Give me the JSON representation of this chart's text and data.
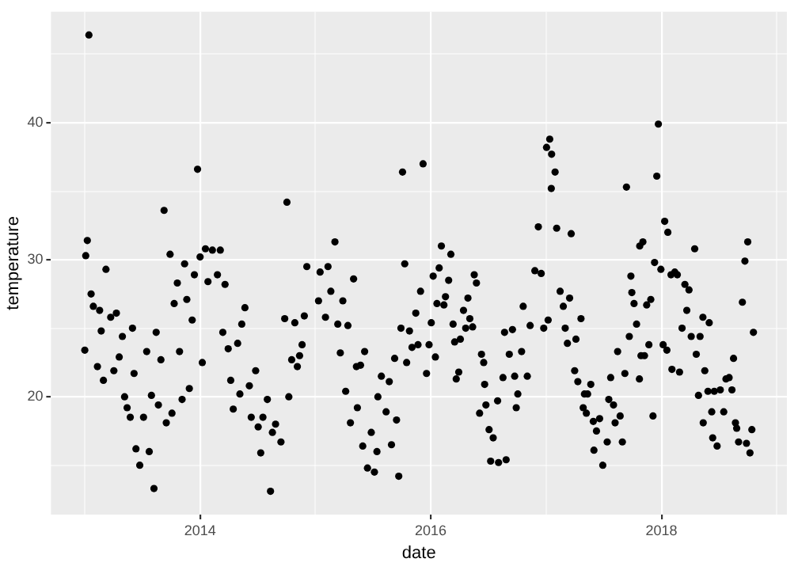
{
  "chart_data": {
    "type": "scatter",
    "xlabel": "date",
    "ylabel": "temperature",
    "marker": "circle",
    "grid": true,
    "xlim": [
      "2012-09-16",
      "2019-02-02"
    ],
    "xticks": [
      {
        "value": "2013",
        "label": null
      },
      {
        "value": "2014",
        "label": "2014"
      },
      {
        "value": "2015",
        "label": null
      },
      {
        "value": "2016",
        "label": "2016"
      },
      {
        "value": "2017",
        "label": null
      },
      {
        "value": "2018",
        "label": "2018"
      },
      {
        "value": "2019",
        "label": null
      }
    ],
    "ylim": [
      11.4,
      48.1
    ],
    "yticks": [
      {
        "value": 15,
        "label": null
      },
      20,
      {
        "value": 25,
        "label": null
      },
      30,
      {
        "value": 35,
        "label": null
      },
      40,
      {
        "value": 45,
        "label": null
      }
    ],
    "series": [
      {
        "color": "#000000",
        "x": [
          "2013-01-01",
          "2013-01-04",
          "2013-01-09",
          "2013-01-14",
          "2013-01-21",
          "2013-01-28",
          "2013-02-10",
          "2013-02-17",
          "2013-02-22",
          "2013-03-01",
          "2013-03-09",
          "2013-03-24",
          "2013-04-03",
          "2013-04-11",
          "2013-04-20",
          "2013-04-30",
          "2013-05-07",
          "2013-05-15",
          "2013-05-25",
          "2013-06-01",
          "2013-06-06",
          "2013-06-12",
          "2013-06-24",
          "2013-07-06",
          "2013-07-16",
          "2013-07-24",
          "2013-07-31",
          "2013-08-08",
          "2013-08-15",
          "2013-08-22",
          "2013-08-30",
          "2013-09-09",
          "2013-09-16",
          "2013-09-28",
          "2013-10-04",
          "2013-10-11",
          "2013-10-21",
          "2013-10-28",
          "2013-11-05",
          "2013-11-13",
          "2013-11-20",
          "2013-11-28",
          "2013-12-07",
          "2013-12-14",
          "2013-12-24",
          "2014-01-01",
          "2014-01-08",
          "2014-01-18",
          "2014-01-26",
          "2014-02-09",
          "2014-02-25",
          "2014-03-06",
          "2014-03-14",
          "2014-03-21",
          "2014-03-31",
          "2014-04-08",
          "2014-04-16",
          "2014-04-30",
          "2014-05-07",
          "2014-05-13",
          "2014-05-23",
          "2014-06-06",
          "2014-06-12",
          "2014-06-26",
          "2014-07-04",
          "2014-07-12",
          "2014-07-19",
          "2014-08-02",
          "2014-08-12",
          "2014-08-18",
          "2014-08-28",
          "2014-09-14",
          "2014-09-26",
          "2014-10-03",
          "2014-10-09",
          "2014-10-18",
          "2014-10-28",
          "2014-11-05",
          "2014-11-12",
          "2014-11-20",
          "2014-11-27",
          "2014-12-05",
          "2015-01-11",
          "2015-01-16",
          "2015-02-02",
          "2015-02-10",
          "2015-02-19",
          "2015-03-04",
          "2015-03-13",
          "2015-03-21",
          "2015-03-29",
          "2015-04-07",
          "2015-04-14",
          "2015-04-22",
          "2015-05-02",
          "2015-05-11",
          "2015-05-14",
          "2015-05-24",
          "2015-05-31",
          "2015-06-06",
          "2015-06-15",
          "2015-06-27",
          "2015-07-07",
          "2015-07-15",
          "2015-07-18",
          "2015-07-29",
          "2015-08-13",
          "2015-08-23",
          "2015-08-30",
          "2015-09-09",
          "2015-09-15",
          "2015-09-22",
          "2015-09-29",
          "2015-10-04",
          "2015-10-11",
          "2015-10-17",
          "2015-10-26",
          "2015-11-03",
          "2015-11-15",
          "2015-11-22",
          "2015-11-30",
          "2015-12-08",
          "2015-12-19",
          "2015-12-27",
          "2016-01-03",
          "2016-01-09",
          "2016-01-16",
          "2016-01-21",
          "2016-01-28",
          "2016-02-04",
          "2016-02-12",
          "2016-02-17",
          "2016-02-27",
          "2016-03-05",
          "2016-03-12",
          "2016-03-17",
          "2016-03-22",
          "2016-03-30",
          "2016-04-04",
          "2016-04-14",
          "2016-04-21",
          "2016-04-28",
          "2016-05-04",
          "2016-05-13",
          "2016-05-18",
          "2016-05-25",
          "2016-06-04",
          "2016-06-10",
          "2016-06-17",
          "2016-06-20",
          "2016-06-24",
          "2016-07-04",
          "2016-07-09",
          "2016-07-17",
          "2016-07-31",
          "2016-08-03",
          "2016-08-17",
          "2016-08-22",
          "2016-08-27",
          "2016-09-06",
          "2016-09-16",
          "2016-09-23",
          "2016-09-28",
          "2016-10-03",
          "2016-10-15",
          "2016-10-20",
          "2016-11-02",
          "2016-11-11",
          "2016-11-26",
          "2016-12-07",
          "2016-12-16",
          "2016-12-24",
          "2017-01-02",
          "2017-01-07",
          "2017-01-12",
          "2017-01-17",
          "2017-01-18",
          "2017-01-29",
          "2017-02-03",
          "2017-02-14",
          "2017-02-24",
          "2017-03-02",
          "2017-03-09",
          "2017-03-16",
          "2017-03-21",
          "2017-04-01",
          "2017-04-05",
          "2017-04-11",
          "2017-04-21",
          "2017-04-28",
          "2017-05-02",
          "2017-05-08",
          "2017-05-12",
          "2017-05-22",
          "2017-05-30",
          "2017-06-01",
          "2017-06-09",
          "2017-06-19",
          "2017-06-29",
          "2017-07-13",
          "2017-07-18",
          "2017-07-24",
          "2017-08-02",
          "2017-08-07",
          "2017-08-15",
          "2017-08-23",
          "2017-08-30",
          "2017-09-07",
          "2017-09-12",
          "2017-09-21",
          "2017-09-26",
          "2017-09-29",
          "2017-10-06",
          "2017-10-14",
          "2017-10-23",
          "2017-10-24",
          "2017-10-28",
          "2017-11-03",
          "2017-11-08",
          "2017-11-15",
          "2017-11-22",
          "2017-11-28",
          "2017-12-05",
          "2017-12-10",
          "2017-12-17",
          "2017-12-22",
          "2017-12-30",
          "2018-01-06",
          "2018-01-11",
          "2018-01-18",
          "2018-01-21",
          "2018-01-31",
          "2018-02-03",
          "2018-02-12",
          "2018-02-20",
          "2018-02-27",
          "2018-03-07",
          "2018-03-16",
          "2018-03-22",
          "2018-03-29",
          "2018-04-05",
          "2018-04-16",
          "2018-04-21",
          "2018-04-28",
          "2018-05-03",
          "2018-05-12",
          "2018-05-13",
          "2018-05-18",
          "2018-05-28",
          "2018-06-01",
          "2018-06-09",
          "2018-06-12",
          "2018-06-17",
          "2018-06-26",
          "2018-07-06",
          "2018-07-17",
          "2018-07-24",
          "2018-08-03",
          "2018-08-12",
          "2018-08-17",
          "2018-08-23",
          "2018-08-27",
          "2018-09-02",
          "2018-09-14",
          "2018-09-22",
          "2018-09-27",
          "2018-10-01",
          "2018-10-08",
          "2018-10-14",
          "2018-10-19"
        ],
        "values": [
          23.4,
          30.3,
          31.4,
          46.4,
          27.5,
          26.6,
          22.2,
          26.3,
          24.8,
          21.2,
          29.3,
          25.8,
          21.9,
          26.1,
          22.9,
          24.4,
          20.0,
          19.2,
          18.5,
          25.0,
          21.7,
          16.2,
          15.0,
          18.5,
          23.3,
          16.0,
          20.1,
          13.3,
          24.7,
          19.4,
          22.7,
          33.6,
          18.1,
          30.4,
          18.8,
          26.8,
          28.3,
          23.3,
          19.8,
          29.7,
          27.1,
          20.6,
          25.6,
          28.9,
          36.6,
          30.2,
          22.5,
          30.8,
          28.4,
          30.7,
          28.9,
          30.7,
          24.7,
          28.2,
          23.5,
          21.2,
          19.1,
          23.9,
          20.2,
          25.3,
          26.5,
          20.8,
          18.5,
          21.9,
          17.8,
          15.9,
          18.5,
          19.8,
          13.1,
          17.4,
          18.0,
          16.7,
          25.7,
          34.2,
          20.0,
          22.7,
          25.4,
          22.2,
          23.0,
          23.8,
          25.9,
          29.5,
          27.0,
          29.1,
          25.8,
          29.5,
          27.7,
          31.3,
          25.3,
          23.2,
          27.0,
          20.4,
          25.2,
          18.1,
          28.6,
          22.2,
          19.2,
          22.3,
          16.4,
          23.3,
          14.8,
          17.4,
          14.5,
          16.0,
          20.0,
          21.5,
          18.9,
          21.1,
          16.5,
          22.8,
          18.3,
          14.2,
          25.0,
          36.4,
          29.7,
          22.5,
          24.8,
          23.6,
          26.1,
          23.8,
          27.7,
          37.0,
          21.7,
          23.8,
          25.4,
          28.8,
          22.9,
          26.8,
          29.4,
          31.0,
          26.7,
          27.3,
          28.5,
          30.4,
          25.3,
          24.0,
          21.3,
          21.8,
          24.2,
          26.3,
          25.0,
          27.2,
          25.7,
          25.1,
          28.9,
          28.3,
          18.8,
          23.1,
          22.5,
          20.9,
          19.4,
          17.6,
          15.3,
          17.0,
          19.7,
          15.2,
          21.4,
          24.7,
          15.4,
          23.1,
          24.9,
          21.5,
          19.2,
          20.2,
          23.3,
          26.6,
          21.5,
          25.2,
          29.2,
          32.4,
          29.0,
          25.0,
          38.2,
          25.6,
          38.8,
          35.2,
          37.7,
          36.4,
          32.3,
          27.7,
          26.6,
          25.0,
          23.9,
          27.2,
          31.9,
          21.9,
          24.2,
          21.1,
          25.7,
          19.2,
          20.2,
          18.8,
          20.2,
          20.9,
          18.2,
          16.1,
          17.5,
          18.4,
          15.0,
          16.7,
          19.8,
          21.4,
          19.4,
          18.1,
          23.3,
          18.6,
          16.7,
          21.7,
          35.3,
          24.4,
          28.8,
          27.6,
          26.8,
          25.3,
          21.3,
          31.0,
          23.0,
          31.3,
          23.0,
          26.7,
          23.8,
          27.1,
          18.6,
          29.8,
          36.1,
          39.9,
          29.3,
          23.8,
          32.8,
          23.4,
          32.0,
          28.9,
          22.0,
          29.1,
          28.9,
          21.8,
          25.0,
          28.2,
          26.3,
          27.8,
          24.4,
          30.8,
          23.1,
          20.1,
          24.4,
          25.8,
          18.1,
          21.9,
          20.4,
          25.4,
          18.9,
          17.0,
          20.4,
          16.4,
          20.5,
          18.9,
          21.3,
          21.4,
          20.5,
          22.8,
          18.1,
          17.7,
          16.7,
          26.9,
          29.9,
          16.6,
          31.3,
          15.9,
          17.6,
          24.7
        ]
      }
    ]
  }
}
